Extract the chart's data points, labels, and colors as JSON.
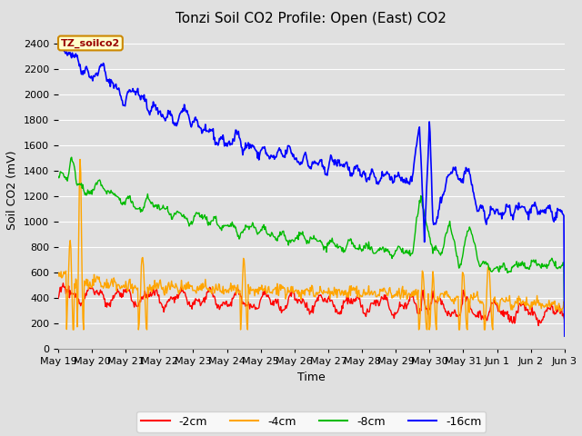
{
  "title": "Tonzi Soil CO2 Profile: Open (East) CO2",
  "xlabel": "Time",
  "ylabel": "Soil CO2 (mV)",
  "ylim": [
    0,
    2500
  ],
  "yticks": [
    0,
    200,
    400,
    600,
    800,
    1000,
    1200,
    1400,
    1600,
    1800,
    2000,
    2200,
    2400
  ],
  "bg_color": "#e0e0e0",
  "grid_color": "#ffffff",
  "colors": {
    "2cm": "#ff0000",
    "4cm": "#ffa500",
    "8cm": "#00bb00",
    "16cm": "#0000ff"
  },
  "legend_labels": [
    "-2cm",
    "-4cm",
    "-8cm",
    "-16cm"
  ],
  "watermark_text": "TZ_soilco2",
  "watermark_bg": "#ffffcc",
  "watermark_border": "#cc8800",
  "title_fontsize": 11,
  "label_fontsize": 9,
  "tick_fontsize": 8,
  "tick_days": [
    [
      0,
      "May 19"
    ],
    [
      1,
      "May 20"
    ],
    [
      2,
      "May 21"
    ],
    [
      3,
      "May 22"
    ],
    [
      4,
      "May 23"
    ],
    [
      5,
      "May 24"
    ],
    [
      6,
      "May 25"
    ],
    [
      7,
      "May 26"
    ],
    [
      8,
      "May 27"
    ],
    [
      9,
      "May 28"
    ],
    [
      10,
      "May 29"
    ],
    [
      11,
      "May 30"
    ],
    [
      12,
      "May 31"
    ],
    [
      13,
      "Jun 1"
    ],
    [
      14,
      "Jun 2"
    ],
    [
      15,
      "Jun 3"
    ]
  ]
}
